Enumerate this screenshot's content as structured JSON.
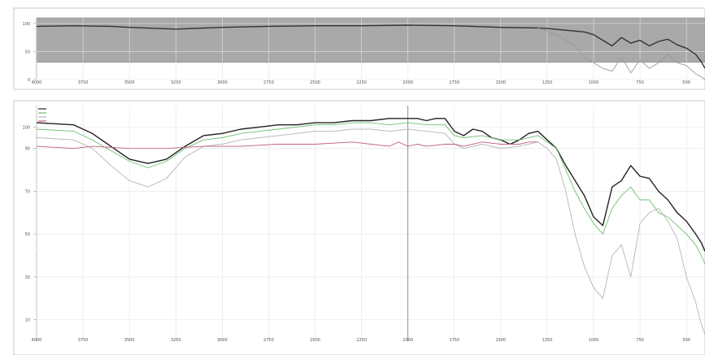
{
  "chart_data": [
    {
      "type": "line",
      "panel": "overview",
      "title": "",
      "xlabel": "",
      "ylabel": "",
      "xlim": [
        4000,
        400
      ],
      "ylim": [
        0,
        110
      ],
      "x_ticks": [
        "4000",
        "3750",
        "3500",
        "3250",
        "3000",
        "2750",
        "2500",
        "2250",
        "2000",
        "1750",
        "1500",
        "1250",
        "1000",
        "750",
        "500"
      ],
      "y_ticks": [
        "100",
        "50",
        "0"
      ],
      "grid": true,
      "selection_band": [
        4000,
        400
      ],
      "series": [
        {
          "name": "",
          "color": "#333333",
          "x": [
            4000,
            3800,
            3600,
            3500,
            3250,
            3000,
            2750,
            2500,
            2250,
            2000,
            1750,
            1500,
            1300,
            1250,
            1150,
            1050,
            1000,
            950,
            900,
            850,
            800,
            750,
            700,
            650,
            600,
            550,
            500,
            450,
            420,
            400
          ],
          "y": [
            95,
            96,
            95,
            93,
            90,
            93,
            95,
            96,
            96,
            97,
            96,
            93,
            92,
            91,
            88,
            85,
            80,
            70,
            60,
            75,
            65,
            70,
            60,
            68,
            72,
            62,
            56,
            45,
            32,
            20
          ]
        },
        {
          "name": "",
          "color": "#999999",
          "x": [
            1300,
            1200,
            1100,
            1050,
            1000,
            950,
            900,
            850,
            800,
            750,
            700,
            650,
            600,
            550,
            500,
            450,
            420,
            400
          ],
          "y": [
            92,
            80,
            60,
            40,
            30,
            20,
            15,
            40,
            12,
            35,
            20,
            30,
            45,
            30,
            25,
            10,
            5,
            0
          ]
        }
      ]
    },
    {
      "type": "line",
      "panel": "detail",
      "title": "",
      "xlabel": "",
      "ylabel": "",
      "xlim": [
        4000,
        400
      ],
      "ylim": [
        0,
        110
      ],
      "x_ticks": [
        "4000",
        "3750",
        "3500",
        "3250",
        "3000",
        "2750",
        "2500",
        "2250",
        "2000",
        "1750",
        "1500",
        "1250",
        "1000",
        "750",
        "500"
      ],
      "y_ticks": [
        "100",
        "90",
        "70",
        "50",
        "30",
        "10"
      ],
      "grid": true,
      "cursor_x": 2000,
      "legend_placement": "top-left",
      "series": [
        {
          "name": "",
          "color": "#222222",
          "x": [
            4000,
            3800,
            3700,
            3600,
            3500,
            3400,
            3300,
            3200,
            3100,
            3000,
            2900,
            2800,
            2700,
            2600,
            2500,
            2400,
            2300,
            2200,
            2100,
            2000,
            1950,
            1900,
            1850,
            1800,
            1750,
            1700,
            1650,
            1600,
            1550,
            1500,
            1450,
            1400,
            1350,
            1300,
            1250,
            1200,
            1150,
            1100,
            1050,
            1000,
            950,
            900,
            850,
            800,
            750,
            700,
            650,
            600,
            550,
            500,
            450,
            420,
            400
          ],
          "y": [
            102,
            101,
            97,
            91,
            85,
            83,
            85,
            91,
            96,
            97,
            99,
            100,
            101,
            101,
            102,
            102,
            103,
            103,
            104,
            104,
            104,
            103,
            104,
            104,
            98,
            96,
            99,
            98,
            95,
            94,
            92,
            94,
            97,
            98,
            94,
            90,
            82,
            75,
            68,
            58,
            54,
            72,
            75,
            82,
            77,
            76,
            70,
            66,
            60,
            56,
            50,
            46,
            42
          ]
        },
        {
          "name": "",
          "color": "#6fbf6f",
          "x": [
            4000,
            3800,
            3700,
            3600,
            3500,
            3400,
            3300,
            3200,
            3100,
            3000,
            2900,
            2800,
            2700,
            2600,
            2500,
            2400,
            2300,
            2200,
            2100,
            2000,
            1900,
            1800,
            1750,
            1700,
            1600,
            1500,
            1400,
            1300,
            1250,
            1200,
            1150,
            1100,
            1050,
            1000,
            950,
            900,
            850,
            800,
            750,
            700,
            650,
            600,
            550,
            500,
            450,
            420,
            400
          ],
          "y": [
            99,
            98,
            94,
            89,
            84,
            81,
            84,
            90,
            94,
            95,
            97,
            98,
            99,
            100,
            101,
            101,
            102,
            102,
            101,
            102,
            101,
            101,
            96,
            95,
            96,
            94,
            94,
            96,
            93,
            90,
            80,
            70,
            62,
            55,
            50,
            62,
            68,
            72,
            66,
            66,
            60,
            58,
            54,
            50,
            45,
            40,
            36
          ]
        },
        {
          "name": "",
          "color": "#b5b5b5",
          "x": [
            4000,
            3800,
            3700,
            3600,
            3500,
            3400,
            3300,
            3200,
            3100,
            3000,
            2900,
            2800,
            2700,
            2600,
            2500,
            2400,
            2300,
            2200,
            2100,
            2000,
            1900,
            1800,
            1750,
            1700,
            1600,
            1500,
            1400,
            1300,
            1250,
            1200,
            1150,
            1100,
            1050,
            1000,
            950,
            900,
            850,
            800,
            750,
            700,
            650,
            600,
            550,
            500,
            450,
            420,
            400
          ],
          "y": [
            95,
            94,
            90,
            82,
            75,
            72,
            76,
            86,
            91,
            92,
            94,
            95,
            96,
            97,
            98,
            98,
            99,
            99,
            98,
            99,
            98,
            97,
            92,
            90,
            92,
            90,
            91,
            93,
            90,
            85,
            70,
            50,
            35,
            25,
            20,
            40,
            45,
            30,
            55,
            60,
            62,
            56,
            48,
            30,
            18,
            8,
            3
          ]
        },
        {
          "name": "",
          "color": "#c0607a",
          "x": [
            4000,
            3800,
            3700,
            3500,
            3300,
            3100,
            2900,
            2700,
            2500,
            2300,
            2200,
            2100,
            2050,
            2000,
            1950,
            1900,
            1800,
            1750,
            1700,
            1600,
            1500,
            1400,
            1350,
            1300
          ],
          "y": [
            91,
            90,
            91,
            90,
            90,
            91,
            91,
            92,
            92,
            93,
            92,
            91,
            93,
            91,
            92,
            91,
            92,
            92,
            91,
            93,
            92,
            92,
            93,
            93
          ]
        }
      ]
    }
  ]
}
